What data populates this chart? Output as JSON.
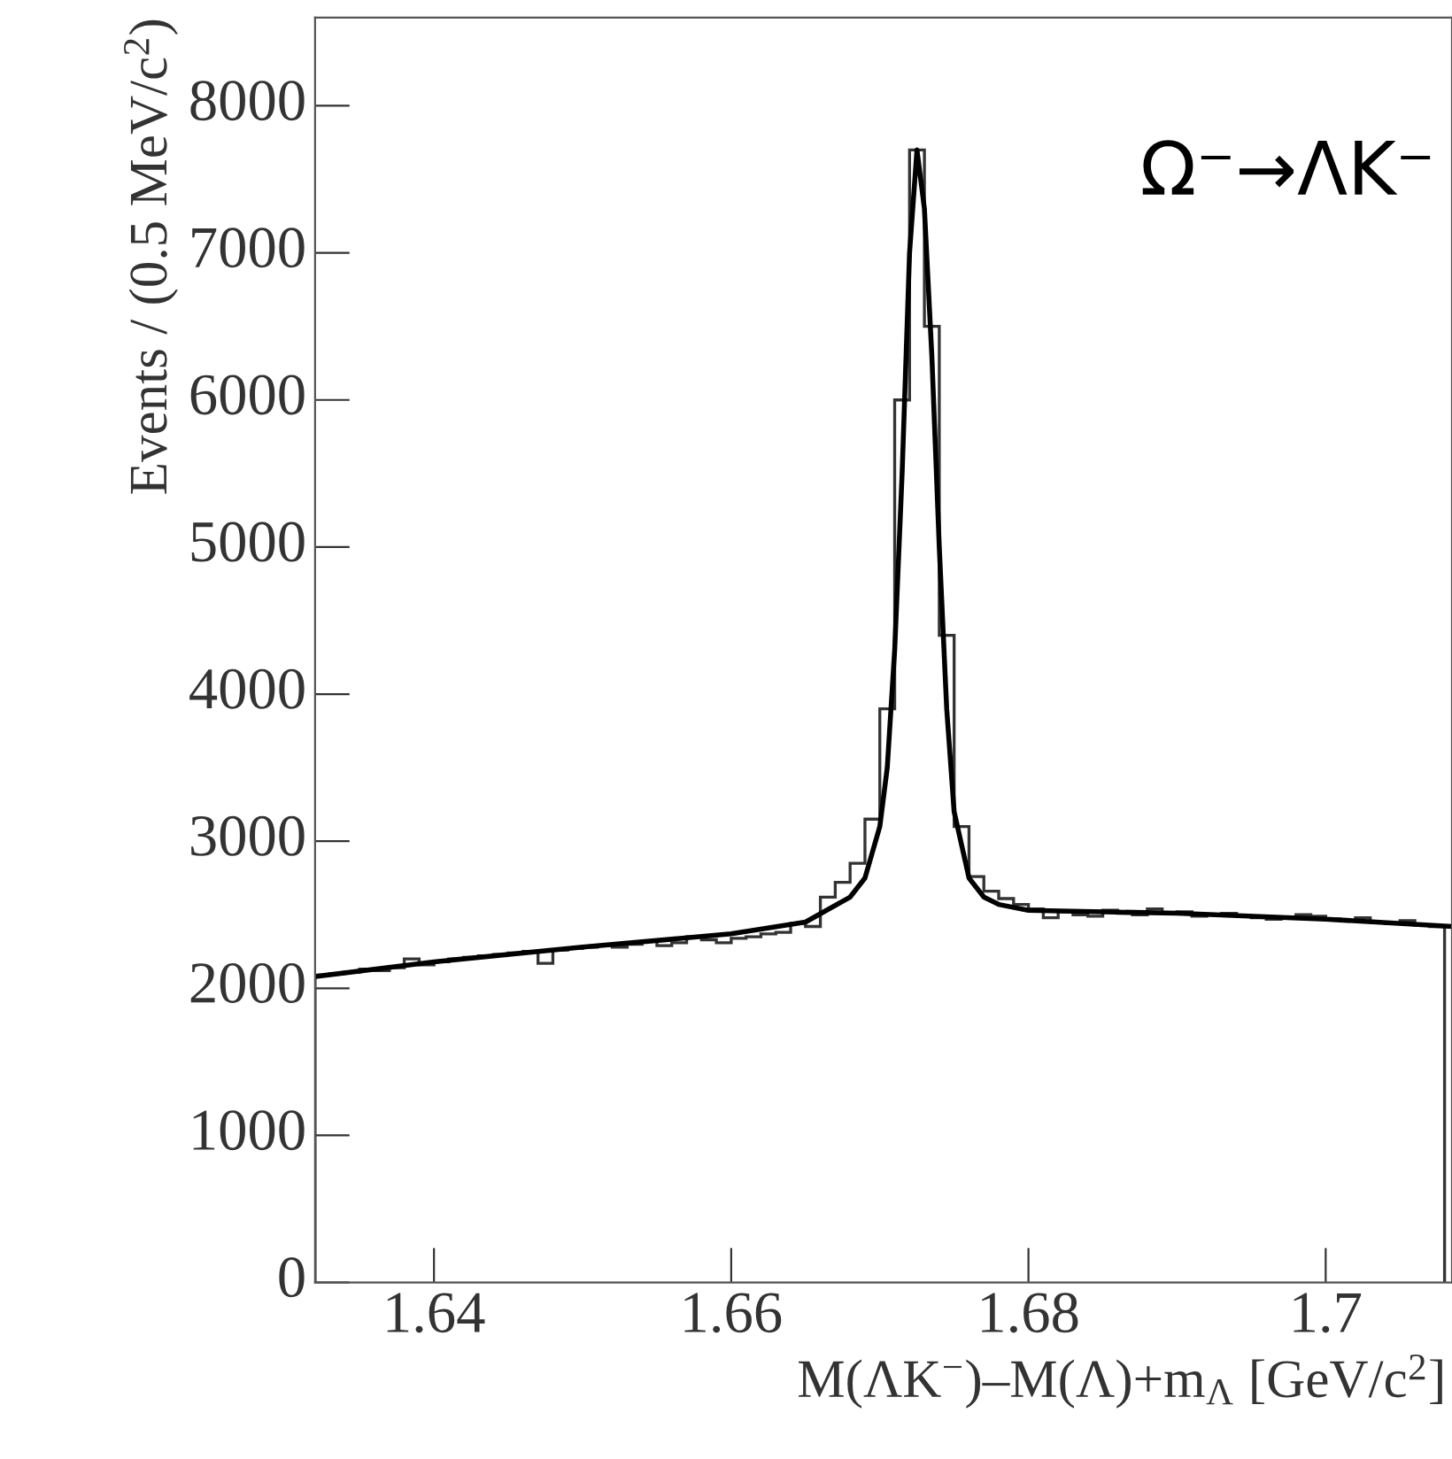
{
  "chart_data": {
    "type": "histogram",
    "xlabel": "M(ΛK$^{−}$)–M(Λ)+m$_{Λ}$ [GeV/c$^{2}$]",
    "ylabel": "Events / (0.5 MeV/c$^{2}$)",
    "annotations": [
      "Ω⁻→ΛK⁻"
    ],
    "xlim": [
      1.632,
      1.7085
    ],
    "ylim": [
      0,
      8600
    ],
    "xticks": [
      1.64,
      1.66,
      1.68,
      1.7
    ],
    "yticks": [
      0,
      1000,
      2000,
      3000,
      4000,
      5000,
      6000,
      7000,
      8000
    ],
    "grid": false,
    "legend": false,
    "series": [
      {
        "type": "histogram",
        "color": "#333333",
        "bins": [
          1.632,
          1.633,
          1.634,
          1.635,
          1.636,
          1.637,
          1.638,
          1.639,
          1.64,
          1.641,
          1.642,
          1.643,
          1.644,
          1.645,
          1.646,
          1.647,
          1.648,
          1.649,
          1.65,
          1.651,
          1.652,
          1.653,
          1.654,
          1.655,
          1.656,
          1.657,
          1.658,
          1.659,
          1.66,
          1.661,
          1.662,
          1.663,
          1.664,
          1.665,
          1.666,
          1.667,
          1.668,
          1.669,
          1.67,
          1.671,
          1.672,
          1.673,
          1.674,
          1.675,
          1.676,
          1.677,
          1.678,
          1.679,
          1.68,
          1.681,
          1.682,
          1.683,
          1.684,
          1.685,
          1.686,
          1.687,
          1.688,
          1.689,
          1.69,
          1.691,
          1.692,
          1.693,
          1.694,
          1.695,
          1.696,
          1.697,
          1.698,
          1.699,
          1.7,
          1.701,
          1.702,
          1.703,
          1.704,
          1.705,
          1.706,
          1.707,
          1.708
        ],
        "values": [
          2090,
          2100,
          2110,
          2130,
          2120,
          2140,
          2200,
          2160,
          2180,
          2200,
          2210,
          2220,
          2230,
          2240,
          2250,
          2170,
          2260,
          2270,
          2280,
          2290,
          2280,
          2300,
          2320,
          2290,
          2310,
          2350,
          2330,
          2310,
          2340,
          2350,
          2370,
          2380,
          2440,
          2420,
          2620,
          2720,
          2850,
          3150,
          3900,
          6000,
          7700,
          6500,
          4400,
          3100,
          2760,
          2660,
          2610,
          2570,
          2540,
          2480,
          2520,
          2500,
          2490,
          2530,
          2510,
          2500,
          2540,
          2510,
          2520,
          2490,
          2500,
          2510,
          2490,
          2480,
          2470,
          2480,
          2500,
          2490,
          2470,
          2460,
          2480,
          2450,
          2440,
          2460,
          2430,
          2420
        ]
      },
      {
        "type": "line",
        "color": "#000000",
        "x": [
          1.632,
          1.64,
          1.65,
          1.66,
          1.665,
          1.668,
          1.669,
          1.67,
          1.6705,
          1.671,
          1.6715,
          1.672,
          1.6725,
          1.673,
          1.6735,
          1.674,
          1.6745,
          1.675,
          1.676,
          1.677,
          1.678,
          1.68,
          1.69,
          1.7,
          1.7085
        ],
        "values": [
          2080,
          2180,
          2280,
          2370,
          2450,
          2620,
          2750,
          3100,
          3500,
          4300,
          5500,
          7000,
          7700,
          7300,
          6300,
          5000,
          3900,
          3200,
          2750,
          2620,
          2570,
          2530,
          2510,
          2470,
          2420
        ]
      }
    ]
  }
}
